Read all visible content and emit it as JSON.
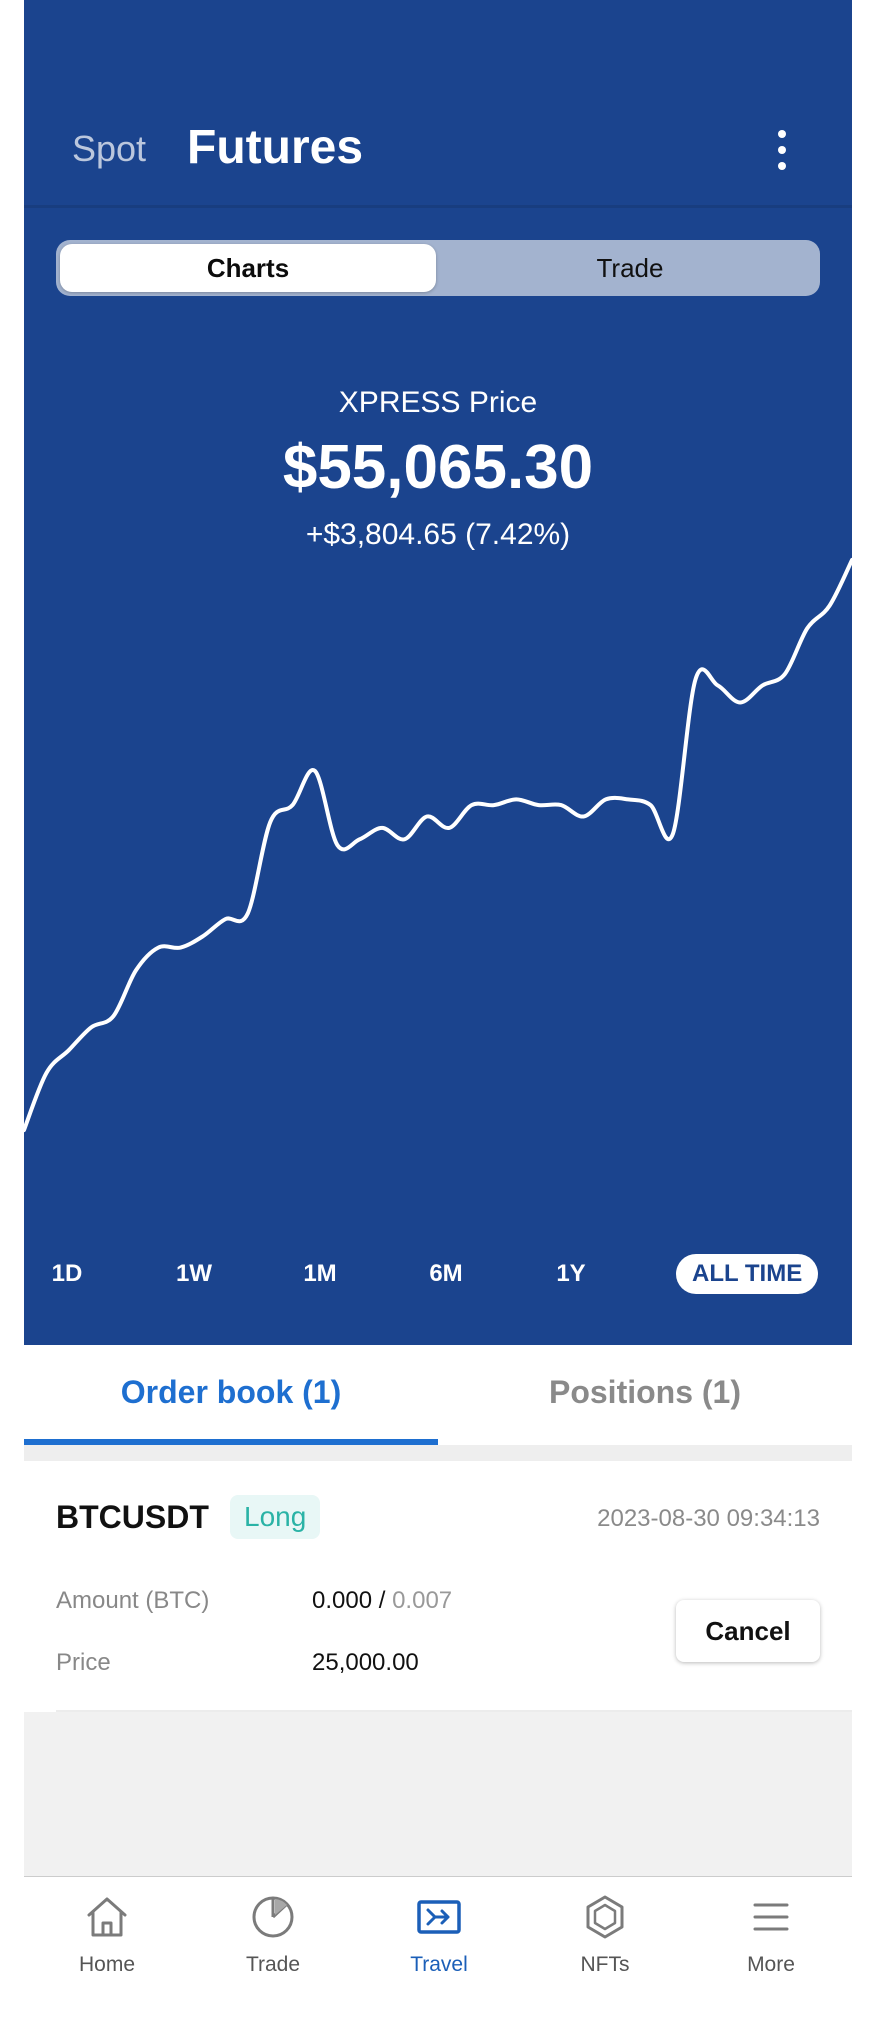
{
  "header": {
    "tab_spot": "Spot",
    "tab_futures": "Futures"
  },
  "segment": {
    "charts": "Charts",
    "trade": "Trade",
    "selected": "Charts"
  },
  "price": {
    "label": "XPRESS Price",
    "value": "$55,065.30",
    "change": "+$3,804.65 (7.42%)"
  },
  "ranges": {
    "items": [
      "1D",
      "1W",
      "1M",
      "6M",
      "1Y",
      "ALL TIME"
    ],
    "selected": "ALL TIME"
  },
  "chart_data": {
    "type": "line",
    "title": "",
    "xlabel": "",
    "ylabel": "",
    "y": [
      0.0,
      0.1,
      0.14,
      0.18,
      0.2,
      0.28,
      0.32,
      0.32,
      0.34,
      0.37,
      0.38,
      0.54,
      0.57,
      0.63,
      0.5,
      0.51,
      0.53,
      0.51,
      0.55,
      0.53,
      0.57,
      0.57,
      0.58,
      0.57,
      0.57,
      0.55,
      0.58,
      0.58,
      0.57,
      0.52,
      0.79,
      0.78,
      0.75,
      0.78,
      0.8,
      0.88,
      0.92,
      1.0
    ],
    "line_color": "#ffffff",
    "background": "#1b448e",
    "grid": false
  },
  "book_tabs": {
    "order_book": "Order book (1)",
    "positions": "Positions (1)",
    "selected": "Order book (1)"
  },
  "order": {
    "symbol": "BTCUSDT",
    "side": "Long",
    "timestamp": "2023-08-30 09:34:13",
    "amount_label": "Amount (BTC)",
    "amount_filled": "0.000",
    "amount_sep": " / ",
    "amount_total": "0.007",
    "price_label": "Price",
    "price_value": "25,000.00",
    "cancel": "Cancel"
  },
  "nav": {
    "items": [
      {
        "label": "Home",
        "icon": "home-icon"
      },
      {
        "label": "Trade",
        "icon": "pie-chart-icon"
      },
      {
        "label": "Travel",
        "icon": "ticket-icon"
      },
      {
        "label": "NFTs",
        "icon": "hexagon-icon"
      },
      {
        "label": "More",
        "icon": "menu-icon"
      }
    ],
    "selected": "Travel"
  },
  "colors": {
    "primary_blue": "#1b448e",
    "accent_blue": "#1e6fd0",
    "long_green": "#2ab3a6"
  }
}
